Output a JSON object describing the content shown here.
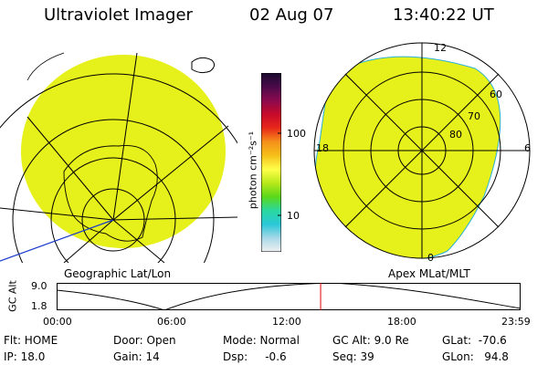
{
  "header": {
    "instrument": "Ultraviolet Imager",
    "date": "02 Aug 07",
    "time": "13:40:22 UT"
  },
  "colorbar": {
    "unit_label": "photon cm⁻²s⁻¹",
    "tick_100": "100",
    "tick_10": "10",
    "stops": [
      "#1a0a2e",
      "#4b0a4a",
      "#8b0a4e",
      "#c80a2a",
      "#e8281a",
      "#f5901a",
      "#f5c01a",
      "#ffff4a",
      "#b8e81a",
      "#5ad81a",
      "#2ad8a0",
      "#2ac8d8",
      "#a8d8e8",
      "#f0f0f0"
    ]
  },
  "geo_panel": {
    "label": "Geographic Lat/Lon",
    "fill_color": "#e6f01a"
  },
  "mag_panel": {
    "label": "Apex MLat/MLT",
    "fill_color": "#e6f01a",
    "mlt_12": "12",
    "mlt_18": "18",
    "mlt_6": "6",
    "mlt_0": "0",
    "lat_60": "60",
    "lat_70": "70",
    "lat_80": "80"
  },
  "altitude_plot": {
    "axis_label": "GC Alt",
    "y_top": "9.0",
    "y_bottom": "1.8",
    "x_ticks": [
      "00:00",
      "06:00",
      "12:00",
      "18:00",
      "23:59"
    ],
    "current_time_fraction": 0.569,
    "marker_color": "#e00000"
  },
  "status": {
    "flt": "Flt: HOME",
    "ip": "IP: 18.0",
    "door": "Door: Open",
    "gain": "Gain: 14",
    "mode": "Mode: Normal",
    "dsp": "Dsp:     -0.6",
    "gcalt": "GC Alt: 9.0 Re",
    "seq": "Seq: 39",
    "glat": "GLat:  -70.6",
    "glon": "GLon:   94.8"
  }
}
